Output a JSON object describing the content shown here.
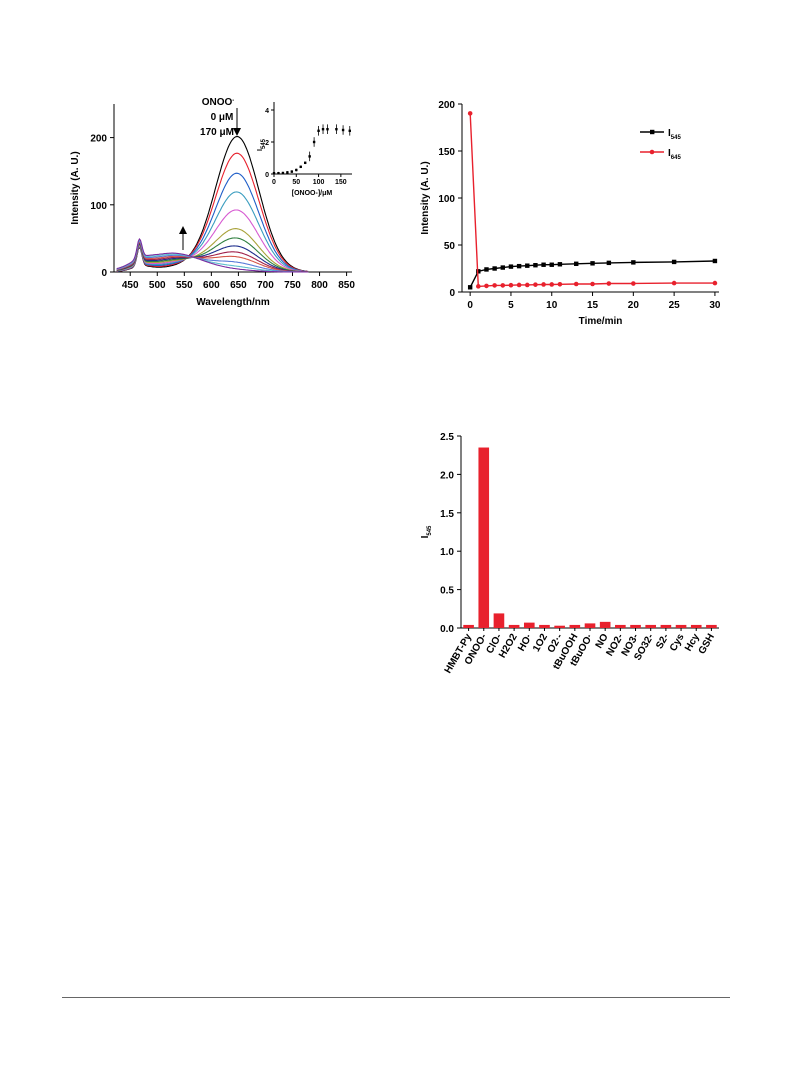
{
  "chart_data": [
    {
      "type": "line",
      "xlabel": "Wavelength/nm",
      "ylabel": "Intensity (A. U.)",
      "xlim": [
        420,
        860
      ],
      "ylim": [
        0,
        250
      ],
      "xticks": [
        450,
        500,
        550,
        600,
        650,
        700,
        750,
        800,
        850
      ],
      "yticks": [
        0,
        100,
        200
      ],
      "annotations": {
        "analyte": "ONOO",
        "analyte_charge": "-",
        "low": "0 μM",
        "high": "170 μM"
      },
      "colors": [
        "#000000",
        "#e8212d",
        "#1f5ec8",
        "#3a9dbf",
        "#d65ad1",
        "#a9a23a",
        "#2f7f3f",
        "#1d2d8c",
        "#a0204a",
        "#d4574a",
        "#5a7cd9",
        "#5fbfcf",
        "#7a2aa0"
      ],
      "series_peaks": [
        200,
        175,
        145,
        117,
        90,
        62,
        48,
        36,
        27,
        20,
        12,
        6,
        2
      ],
      "inset": {
        "type": "scatter",
        "ylabel": "I545/I645",
        "xlabel": "[ONOO-]/μM",
        "xlim": [
          0,
          175
        ],
        "ylim": [
          0,
          4.5
        ],
        "xticks": [
          0,
          50,
          100,
          150
        ],
        "yticks": [
          0,
          2,
          4
        ],
        "x": [
          0,
          10,
          20,
          30,
          40,
          50,
          60,
          70,
          80,
          90,
          100,
          110,
          120,
          140,
          155,
          170
        ],
        "y": [
          0.05,
          0.05,
          0.06,
          0.1,
          0.15,
          0.25,
          0.45,
          0.7,
          1.1,
          2.0,
          2.7,
          2.8,
          2.8,
          2.8,
          2.75,
          2.7
        ]
      }
    },
    {
      "type": "line",
      "xlabel": "Time/min",
      "ylabel": "Intensity (A. U.)",
      "xlim": [
        -1,
        30.5
      ],
      "ylim": [
        0,
        200
      ],
      "xticks": [
        0,
        5,
        10,
        15,
        20,
        25,
        30
      ],
      "yticks": [
        0,
        50,
        100,
        150,
        200
      ],
      "legend_position": "top-right",
      "x": [
        0,
        1,
        2,
        3,
        4,
        5,
        6,
        7,
        8,
        9,
        10,
        11,
        13,
        15,
        17,
        20,
        25,
        30
      ],
      "series": [
        {
          "name": "I545",
          "color": "#000000",
          "values": [
            5,
            22,
            24,
            25,
            26,
            27,
            27.5,
            28,
            28.5,
            29,
            29,
            29.5,
            30,
            30.5,
            31,
            31.5,
            32,
            33
          ]
        },
        {
          "name": "I645",
          "color": "#e8212d",
          "values": [
            190,
            6,
            6.5,
            7,
            7,
            7.2,
            7.5,
            7.5,
            7.8,
            8,
            8,
            8.2,
            8.5,
            8.5,
            9,
            9,
            9.5,
            9.5
          ]
        }
      ]
    },
    {
      "type": "bar",
      "ylabel": "I545/I645",
      "ylim": [
        0,
        2.5
      ],
      "yticks": [
        0.0,
        0.5,
        1.0,
        1.5,
        2.0,
        2.5
      ],
      "color": "#e8212d",
      "categories": [
        "HMBT-Py",
        "ONOO-",
        "ClO-",
        "H2O2",
        "HO·",
        "1O2",
        "O2·-",
        "tBuOOH",
        "tBuOO·",
        "NO",
        "NO2-",
        "NO3-",
        "SO32-",
        "S2-",
        "Cys",
        "Hcy",
        "GSH"
      ],
      "values": [
        0.04,
        2.35,
        0.19,
        0.04,
        0.07,
        0.04,
        0.03,
        0.04,
        0.06,
        0.08,
        0.04,
        0.04,
        0.04,
        0.04,
        0.04,
        0.04,
        0.04
      ]
    }
  ]
}
